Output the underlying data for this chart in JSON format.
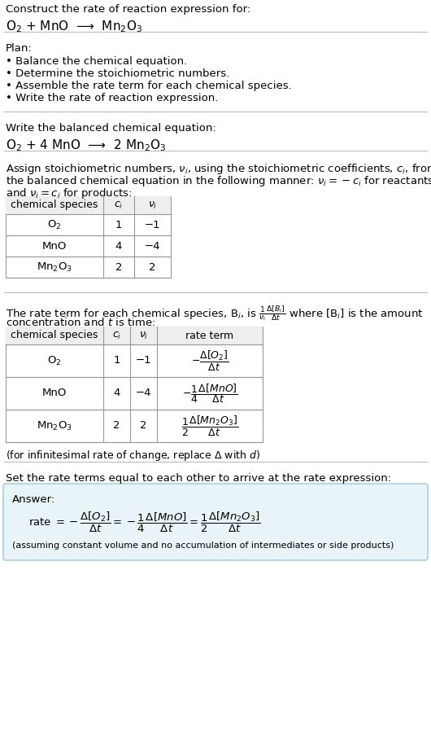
{
  "bg_color": "#ffffff",
  "text_color": "#000000",
  "section1_title": "Construct the rate of reaction expression for:",
  "section1_reaction": "O$_2$ + MnO  ⟶  Mn$_2$O$_3$",
  "section2_title": "Plan:",
  "section2_bullets": [
    "• Balance the chemical equation.",
    "• Determine the stoichiometric numbers.",
    "• Assemble the rate term for each chemical species.",
    "• Write the rate of reaction expression."
  ],
  "section3_title": "Write the balanced chemical equation:",
  "section3_reaction": "O$_2$ + 4 MnO  ⟶  2 Mn$_2$O$_3$",
  "section4_text1": "Assign stoichiometric numbers, $\\nu_i$, using the stoichiometric coefficients, $c_i$, from",
  "section4_text2": "the balanced chemical equation in the following manner: $\\nu_i = -c_i$ for reactants",
  "section4_text3": "and $\\nu_i = c_i$ for products:",
  "table1_headers": [
    "chemical species",
    "$c_i$",
    "$\\nu_i$"
  ],
  "table1_rows": [
    [
      "O$_2$",
      "1",
      "−1"
    ],
    [
      "MnO",
      "4",
      "−4"
    ],
    [
      "Mn$_2$O$_3$",
      "2",
      "2"
    ]
  ],
  "section5_text1": "The rate term for each chemical species, B$_i$, is $\\frac{1}{\\nu_i}\\frac{\\Delta[B_i]}{\\Delta t}$ where [B$_i$] is the amount",
  "section5_text2": "concentration and $t$ is time:",
  "table2_headers": [
    "chemical species",
    "$c_i$",
    "$\\nu_i$",
    "rate term"
  ],
  "table2_rows": [
    [
      "O$_2$",
      "1",
      "−1",
      "$-\\dfrac{\\Delta[O_2]}{\\Delta t}$"
    ],
    [
      "MnO",
      "4",
      "−4",
      "$-\\dfrac{1}{4}\\dfrac{\\Delta[MnO]}{\\Delta t}$"
    ],
    [
      "Mn$_2$O$_3$",
      "2",
      "2",
      "$\\dfrac{1}{2}\\dfrac{\\Delta[Mn_2O_3]}{\\Delta t}$"
    ]
  ],
  "section5_note": "(for infinitesimal rate of change, replace Δ with $d$)",
  "section6_text": "Set the rate terms equal to each other to arrive at the rate expression:",
  "answer_label": "Answer:",
  "answer_rate": "rate $= -\\dfrac{\\Delta[O_2]}{\\Delta t} = -\\dfrac{1}{4}\\dfrac{\\Delta[MnO]}{\\Delta t} = \\dfrac{1}{2}\\dfrac{\\Delta[Mn_2O_3]}{\\Delta t}$",
  "answer_note": "(assuming constant volume and no accumulation of intermediates or side products)",
  "answer_bg": "#e8f4f8",
  "answer_border": "#a8d0e0"
}
